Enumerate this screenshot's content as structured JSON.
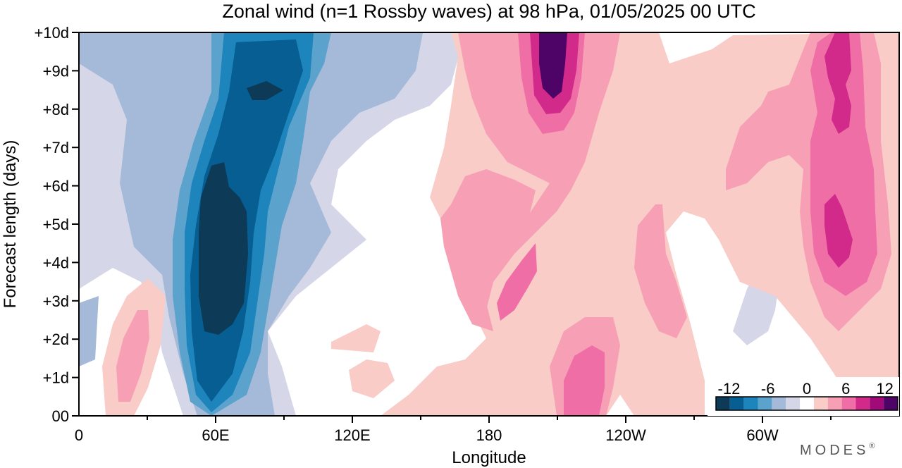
{
  "chart_data": {
    "type": "heatmap",
    "title": "Zonal wind (n=1 Rossby waves) at 98 hPa,  01/05/2025  00 UTC",
    "xlabel": "Longitude",
    "ylabel": "Forecast length (days)",
    "x_ticks": [
      "0",
      "60E",
      "120E",
      "180",
      "120W",
      "60W"
    ],
    "x_tick_values": [
      0,
      60,
      120,
      180,
      240,
      300
    ],
    "xlim": [
      0,
      360
    ],
    "y_ticks": [
      "00",
      "+1d",
      "+2d",
      "+3d",
      "+4d",
      "+5d",
      "+6d",
      "+7d",
      "+8d",
      "+9d",
      "+10d"
    ],
    "y_tick_values": [
      0,
      1,
      2,
      3,
      4,
      5,
      6,
      7,
      8,
      9,
      10
    ],
    "ylim": [
      0,
      10
    ],
    "colorbar": {
      "tick_labels": [
        "-12",
        "-6",
        "0",
        "6",
        "12"
      ],
      "tick_values": [
        -12,
        -6,
        0,
        6,
        12
      ],
      "levels": [
        -14,
        -12,
        -10,
        -8,
        -6,
        -4,
        -2,
        2,
        4,
        6,
        8,
        10,
        12,
        14
      ],
      "colors": [
        "#0c3a57",
        "#065e93",
        "#1d84bc",
        "#5ba2cd",
        "#a4bad8",
        "#d5d7e8",
        "#ffffff",
        "#f9ccc8",
        "#f7a0b5",
        "#ef6ea6",
        "#d12a8a",
        "#a10b79",
        "#4e0467"
      ]
    },
    "features": [
      {
        "sign": "negative",
        "level": -14,
        "lon": 62,
        "day": 4.5,
        "lon_halfwidth": 8,
        "day_halfwidth": 2.3
      },
      {
        "sign": "negative",
        "level": -14,
        "lon": 85,
        "day": 8.5,
        "lon_halfwidth": 5,
        "day_halfwidth": 0.3
      },
      {
        "sign": "negative",
        "level": -12,
        "lon": 70,
        "day": 6,
        "lon_halfwidth": 14,
        "day_halfwidth": 5
      },
      {
        "sign": "negative",
        "level": -8,
        "lon": 70,
        "day": 5,
        "lon_halfwidth": 24,
        "day_halfwidth": 6
      },
      {
        "sign": "positive",
        "level": 14,
        "lon": 206,
        "day": 9.3,
        "lon_halfwidth": 6,
        "day_halfwidth": 1
      },
      {
        "sign": "positive",
        "level": 8,
        "lon": 205,
        "day": 8.5,
        "lon_halfwidth": 18,
        "day_halfwidth": 2.5
      },
      {
        "sign": "positive",
        "level": 8,
        "lon": 338,
        "day": 5.5,
        "lon_halfwidth": 9,
        "day_halfwidth": 4.5
      },
      {
        "sign": "positive",
        "level": 8,
        "lon": 220,
        "day": 1,
        "lon_halfwidth": 8,
        "day_halfwidth": 1.5
      },
      {
        "sign": "positive",
        "level": 8,
        "lon": 192,
        "day": 3.6,
        "lon_halfwidth": 6,
        "day_halfwidth": 1.2
      },
      {
        "sign": "positive",
        "level": 4,
        "lon": 25,
        "day": 1.5,
        "lon_halfwidth": 10,
        "day_halfwidth": 2
      }
    ]
  },
  "branding": {
    "text": "MODES",
    "mark": "®"
  }
}
